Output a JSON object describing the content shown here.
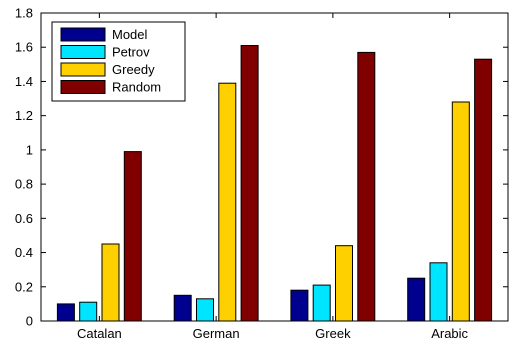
{
  "chart_data": {
    "type": "bar",
    "categories": [
      "Catalan",
      "German",
      "Greek",
      "Arabic"
    ],
    "series": [
      {
        "name": "Model",
        "color": "#00008f",
        "values": [
          0.1,
          0.15,
          0.18,
          0.25
        ]
      },
      {
        "name": "Petrov",
        "color": "#00e5ff",
        "values": [
          0.11,
          0.13,
          0.21,
          0.34
        ]
      },
      {
        "name": "Greedy",
        "color": "#ffd000",
        "values": [
          0.45,
          1.39,
          0.44,
          1.28
        ]
      },
      {
        "name": "Random",
        "color": "#800000",
        "values": [
          0.99,
          1.61,
          1.57,
          1.53
        ]
      }
    ],
    "ylim": [
      0,
      1.8
    ],
    "yticks": [
      "0",
      "0.2",
      "0.4",
      "0.6",
      "0.8",
      "1",
      "1.2",
      "1.4",
      "1.6",
      "1.8"
    ],
    "grid": false,
    "legend_position": "top-left",
    "title": "",
    "xlabel": "",
    "ylabel": ""
  }
}
